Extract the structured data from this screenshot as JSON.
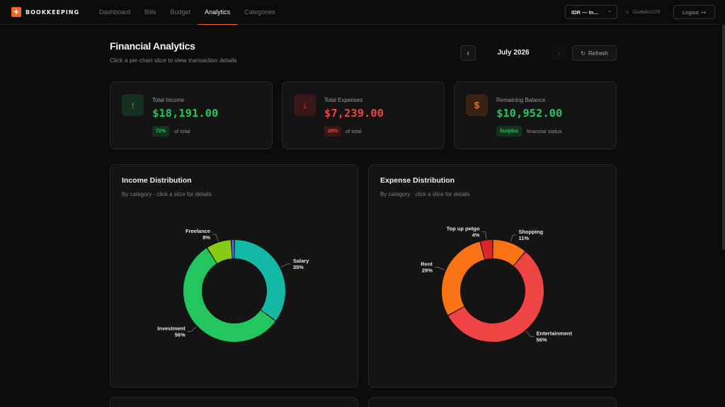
{
  "app": {
    "name": "BOOKKEEPING",
    "logo_icon": "plus-icon",
    "accent": "#f26522"
  },
  "nav": {
    "items": [
      {
        "label": "Dashboard",
        "active": false
      },
      {
        "label": "Bills",
        "active": false
      },
      {
        "label": "Budget",
        "active": false
      },
      {
        "label": "Analytics",
        "active": true
      },
      {
        "label": "Categories",
        "active": false
      }
    ]
  },
  "header": {
    "currency": "IDR — In...",
    "username": "Gudako225",
    "logout_label": "Logout"
  },
  "page": {
    "title": "Financial Analytics",
    "subtitle": "Click a pie chart slice to view transaction details",
    "month": "July 2026",
    "refresh_label": "Refresh"
  },
  "stats": {
    "income": {
      "label": "Total Income",
      "value": "$18,191.00",
      "badge": "72%",
      "note": "of total",
      "color": "#22c55e",
      "icon": "arrow-up-icon"
    },
    "expenses": {
      "label": "Total Expenses",
      "value": "$7,239.00",
      "badge": "28%",
      "note": "of total",
      "color": "#ef4444",
      "icon": "arrow-down-icon"
    },
    "balance": {
      "label": "Remaining Balance",
      "value": "$10,952.00",
      "badge": "Surplus",
      "note": "financial status",
      "color": "#22c55e",
      "icon": "dollar-icon"
    }
  },
  "panels": {
    "income": {
      "title": "Income Distribution",
      "subtitle": "By category · click a slice for details"
    },
    "expense": {
      "title": "Expense Distribution",
      "subtitle": "By category · click a slice for details"
    }
  },
  "chart_data": [
    {
      "type": "pie",
      "title": "Income Distribution",
      "slices": [
        {
          "label": "Salary",
          "value": 35,
          "pct": "35%",
          "color": "#14b8a6"
        },
        {
          "label": "Investment",
          "value": 56,
          "pct": "56%",
          "color": "#22c55e"
        },
        {
          "label": "Freelance",
          "value": 8,
          "pct": "8%",
          "color": "#84cc16"
        },
        {
          "label": "",
          "value": 1,
          "pct": "",
          "color": "#6366f1"
        }
      ]
    },
    {
      "type": "pie",
      "title": "Expense Distribution",
      "slices": [
        {
          "label": "Shopping",
          "value": 11,
          "pct": "11%",
          "color": "#f97316"
        },
        {
          "label": "Entertainment",
          "value": 56,
          "pct": "56%",
          "color": "#ef4444"
        },
        {
          "label": "Rent",
          "value": 29,
          "pct": "29%",
          "color": "#f97316"
        },
        {
          "label": "Top up petgo",
          "value": 4,
          "pct": "4%",
          "color": "#dc2626"
        }
      ]
    }
  ]
}
